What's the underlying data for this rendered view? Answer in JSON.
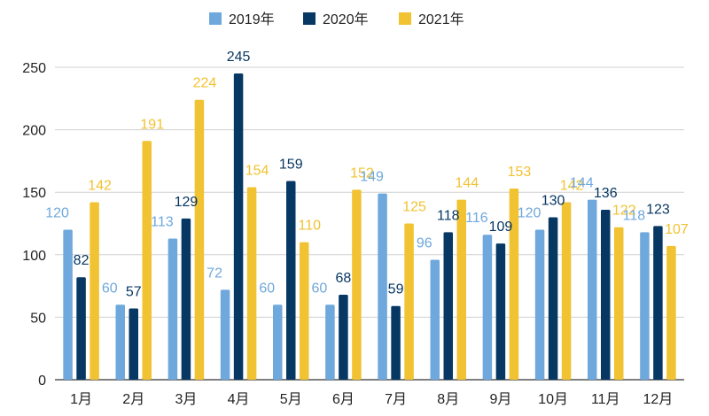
{
  "chart_data": {
    "type": "bar",
    "title": "",
    "xlabel": "",
    "ylabel": "",
    "categories": [
      "1月",
      "2月",
      "3月",
      "4月",
      "5月",
      "6月",
      "7月",
      "8月",
      "9月",
      "10月",
      "11月",
      "12月"
    ],
    "ylim": [
      0,
      250
    ],
    "yticks": [
      "0",
      "50",
      "100",
      "150",
      "200",
      "250"
    ],
    "grid": true,
    "legend_position": "top-center",
    "series": [
      {
        "name": "2019年",
        "color": "#6fa8dc",
        "values": [
          120,
          60,
          113,
          72,
          60,
          60,
          149,
          96,
          116,
          120,
          144,
          118
        ]
      },
      {
        "name": "2020年",
        "color": "#073763",
        "values": [
          82,
          57,
          129,
          245,
          159,
          68,
          59,
          118,
          109,
          130,
          136,
          123
        ]
      },
      {
        "name": "2021年",
        "color": "#f1c232",
        "values": [
          142,
          191,
          224,
          154,
          110,
          152,
          125,
          144,
          153,
          142,
          122,
          107
        ]
      }
    ]
  }
}
